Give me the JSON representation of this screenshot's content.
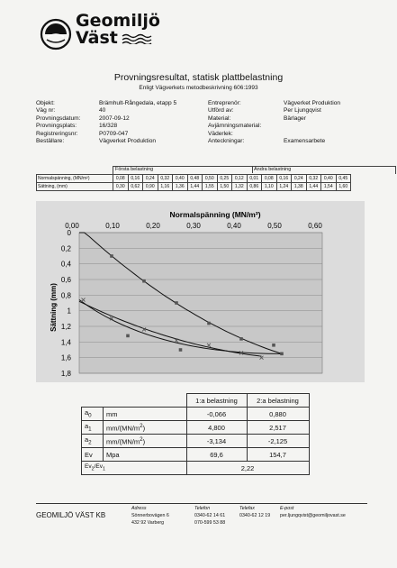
{
  "logo": {
    "line1": "Geomiljö",
    "line2": "Väst"
  },
  "title": "Provningsresultat, statisk plattbelastning",
  "subtitle": "Enligt Vägverkets metodbeskrivning 606:1993",
  "info_left": [
    {
      "label": "Objekt:",
      "value": "Brämhult-Rångedala, etapp 5"
    },
    {
      "label": "Väg nr:",
      "value": "40"
    },
    {
      "label": "Provningsdatum:",
      "value": "2007-09-12"
    },
    {
      "label": "Provningsplats:",
      "value": "16/328"
    },
    {
      "label": "Registreringsnr:",
      "value": "P0709-047"
    },
    {
      "label": "Beställare:",
      "value": "Vägverket Produktion"
    }
  ],
  "info_right": [
    {
      "label": "Entreprenör:",
      "value": "Vägverket Produktion"
    },
    {
      "label": "Utförd av:",
      "value": "Per Ljungqvist"
    },
    {
      "label": "Material:",
      "value": "Bärlager"
    },
    {
      "label": "Avjämningsmaterial:",
      "value": ""
    },
    {
      "label": "Väderlek:",
      "value": ""
    },
    {
      "label": "Anteckningar:",
      "value": "Examensarbete"
    }
  ],
  "load_table": {
    "first_header": "Första belastning",
    "second_header": "Andra belastning",
    "row_labels": [
      "Normalspänning, (MN/m²)",
      "Sättning, (mm)"
    ],
    "first_stress": [
      "0,08",
      "0,16",
      "0,24",
      "0,32",
      "0,40",
      "0,48",
      "0,50",
      "0,25",
      "0,12"
    ],
    "first_settle": [
      "0,30",
      "0,62",
      "0,90",
      "1,16",
      "1,36",
      "1,44",
      "1,55",
      "1,50",
      "1,32"
    ],
    "second_stress": [
      "0,01",
      "0,08",
      "0,16",
      "0,24",
      "0,32",
      "0,40",
      "0,45"
    ],
    "second_settle": [
      "0,86",
      "1,10",
      "1,24",
      "1,38",
      "1,44",
      "1,54",
      "1,60"
    ]
  },
  "chart_data": {
    "type": "scatter",
    "title": "Normalspänning (MN/m²)",
    "ylabel": "Sättning (mm)",
    "xlim": [
      0,
      0.6
    ],
    "ylim": [
      0,
      1.8
    ],
    "y_reversed": true,
    "x_ticks": [
      "0,00",
      "0,10",
      "0,20",
      "0,30",
      "0,40",
      "0,50",
      "0,60"
    ],
    "y_ticks": [
      "0",
      "0,2",
      "0,4",
      "0,6",
      "0,8",
      "1",
      "1,2",
      "1,4",
      "1,6",
      "1,8"
    ],
    "series": [
      {
        "x": [
          0.08,
          0.16,
          0.24,
          0.32,
          0.4,
          0.48,
          0.5,
          0.25,
          0.12
        ],
        "y": [
          0.3,
          0.62,
          0.9,
          1.16,
          1.36,
          1.44,
          1.55,
          1.5,
          1.32
        ]
      },
      {
        "x": [
          0.01,
          0.08,
          0.16,
          0.24,
          0.32,
          0.4,
          0.45
        ],
        "y": [
          0.86,
          1.1,
          1.24,
          1.38,
          1.44,
          1.54,
          1.6
        ]
      }
    ],
    "colors": {
      "plot_bg": "#c8c8c8",
      "panel_bg": "#dcdcdc",
      "line": "#111111"
    }
  },
  "results": {
    "col_headers": [
      "1:a belastning",
      "2:a belastning"
    ],
    "rows": [
      {
        "sym": "a",
        "sub": "0",
        "unit": "mm",
        "unit_sup": "",
        "v1": "-0,066",
        "v2": "0,880"
      },
      {
        "sym": "a",
        "sub": "1",
        "unit": "mm/(MN/m",
        "unit_sup": "2",
        "v1": "4,800",
        "v2": "2,517"
      },
      {
        "sym": "a",
        "sub": "2",
        "unit": "mm/(MN/m",
        "unit_sup": "2",
        "v1": "-3,134",
        "v2": "-2,125"
      },
      {
        "sym": "Ev",
        "sub": "",
        "unit": "Mpa",
        "unit_sup": "",
        "v1": "69,6",
        "v2": "154,7"
      }
    ],
    "ratio_label_a": "Ev",
    "ratio_label_sub2": "2",
    "ratio_label_b": "/Ev",
    "ratio_label_sub1": "1",
    "ratio_value": "2,22"
  },
  "footer": {
    "company": "GEOMILJÖ VÄST KB",
    "address_label": "Adress",
    "address_lines": [
      "Sönnerbovägen 6",
      "432 92 Varberg"
    ],
    "phone_label": "Telefon",
    "phone_lines": [
      "0340-62 14 61",
      "070-599 53 88"
    ],
    "fax_label": "Telefax",
    "fax_lines": [
      "0340-62 12 19"
    ],
    "email_label": "E-post",
    "email_lines": [
      "per.ljungqvist@geomiljovast.se"
    ]
  }
}
